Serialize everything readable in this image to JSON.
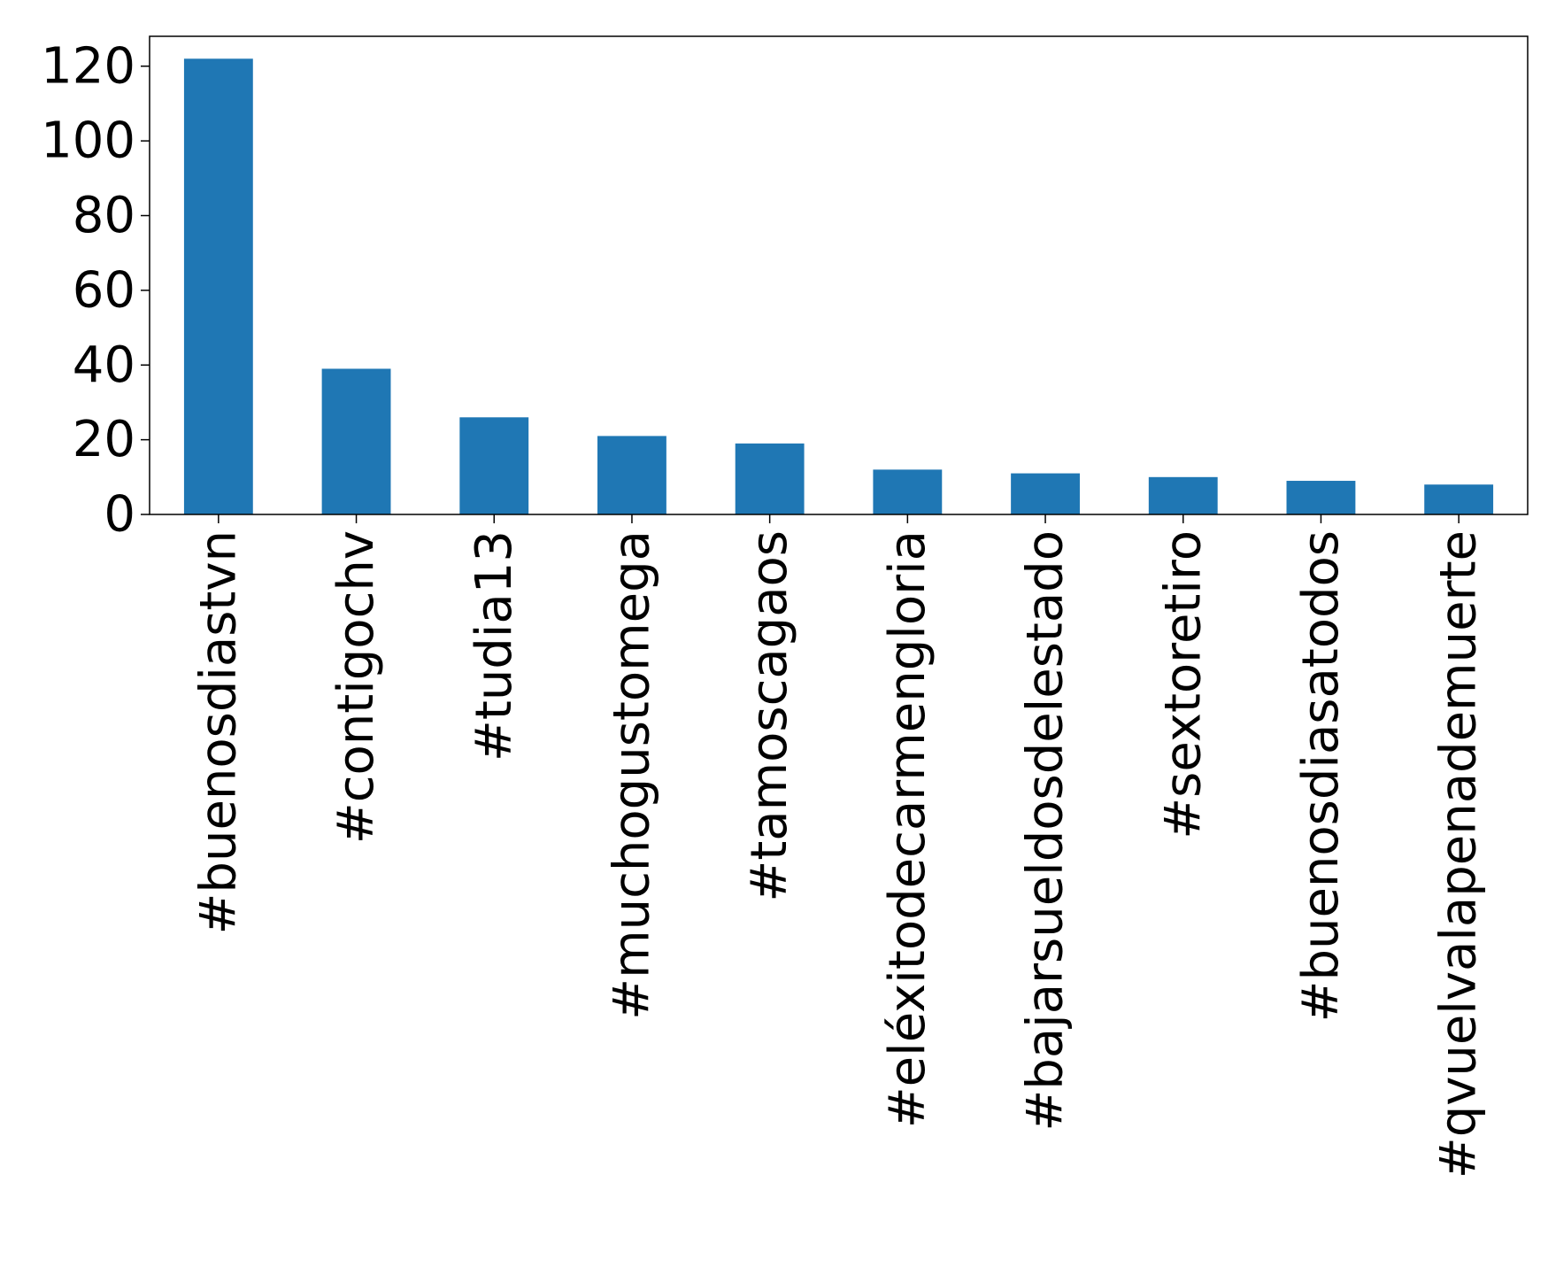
{
  "chart_data": {
    "type": "bar",
    "title": "",
    "xlabel": "",
    "ylabel": "",
    "categories": [
      "#buenosdiastvn",
      "#contigochv",
      "#tudia13",
      "#muchogustomega",
      "#tamoscagaos",
      "#eléxitodecarmengloria",
      "#bajarsueldosdelestado",
      "#sextoretiro",
      "#buenosdiasatodos",
      "#qvuelvalapenademuerte"
    ],
    "values": [
      122,
      39,
      26,
      21,
      19,
      12,
      11,
      10,
      9,
      8
    ],
    "ylim": [
      0,
      128
    ],
    "yticks": [
      0,
      20,
      40,
      60,
      80,
      100,
      120
    ],
    "grid": false,
    "legend": "none",
    "bar_color": "#1f77b4"
  }
}
